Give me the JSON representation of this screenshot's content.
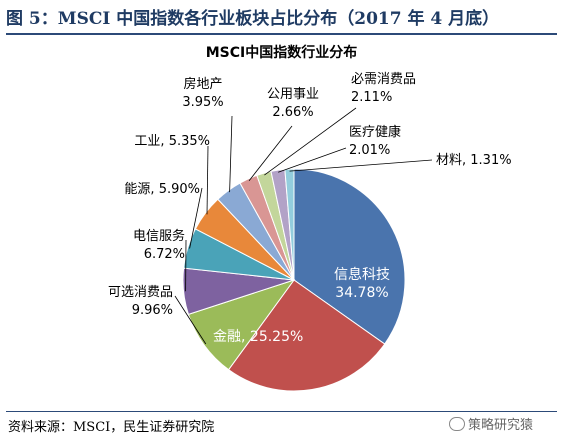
{
  "figure": {
    "title": "图 5：MSCI 中国指数各行业板块占比分布（2017 年 4 月底）",
    "source": "资料来源：MSCI，民生证券研究院",
    "watermark": "策略研究猿"
  },
  "chart_data": {
    "type": "pie",
    "title": "MSCI中国指数行业分布",
    "unit": "%",
    "slices": [
      {
        "label": "信息科技",
        "value": 34.78,
        "display": "34.78%",
        "color": "#4a74ad"
      },
      {
        "label": "金融",
        "value": 25.25,
        "display": "25.25%",
        "color": "#c0504d"
      },
      {
        "label": "可选消费品",
        "value": 9.96,
        "display": "9.96%",
        "color": "#9bbb59"
      },
      {
        "label": "电信服务",
        "value": 6.72,
        "display": "6.72%",
        "color": "#7e62a0"
      },
      {
        "label": "能源",
        "value": 5.9,
        "display": "5.90%",
        "color": "#4aa3b8"
      },
      {
        "label": "工业",
        "value": 5.35,
        "display": "5.35%",
        "color": "#e8883a"
      },
      {
        "label": "房地产",
        "value": 3.95,
        "display": "3.95%",
        "color": "#8aa9d4"
      },
      {
        "label": "公用事业",
        "value": 2.66,
        "display": "2.66%",
        "color": "#d99694"
      },
      {
        "label": "必需消费品",
        "value": 2.11,
        "display": "2.11%",
        "color": "#c3d69b"
      },
      {
        "label": "医疗健康",
        "value": 2.01,
        "display": "2.01%",
        "color": "#b2a2c7"
      },
      {
        "label": "材料",
        "value": 1.31,
        "display": "1.31%",
        "color": "#93cddd"
      }
    ]
  }
}
